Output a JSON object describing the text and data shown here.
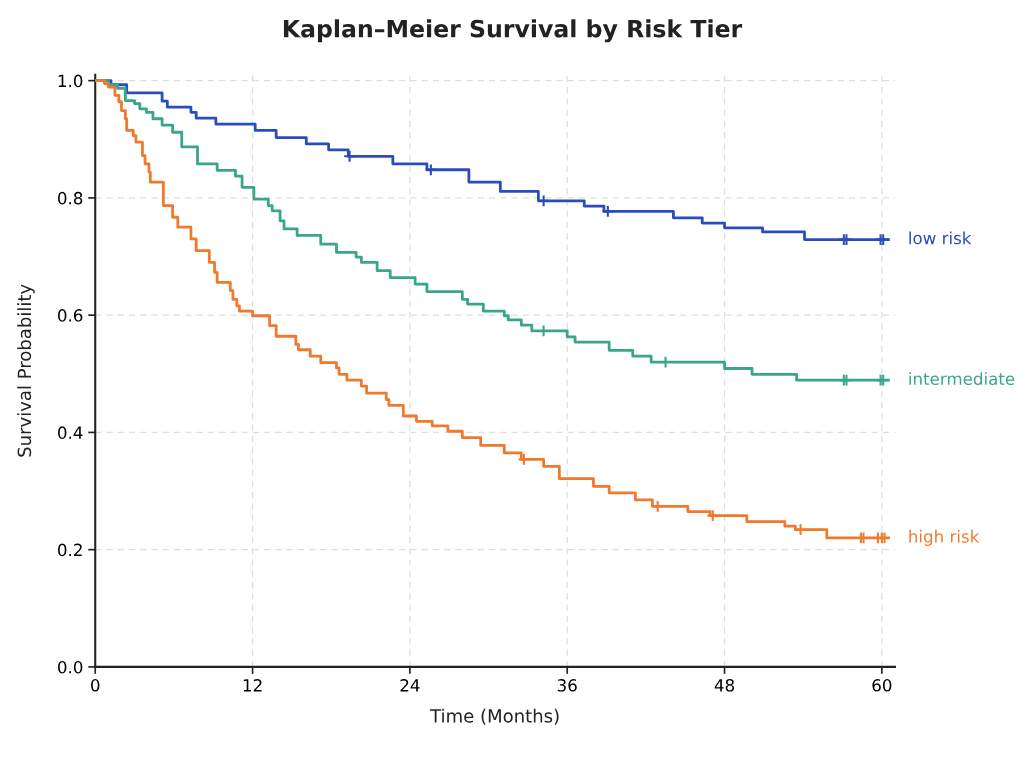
{
  "chart_data": {
    "type": "step",
    "title": "Kaplan–Meier Survival by Risk Tier",
    "xlabel": "Time (Months)",
    "ylabel": "Survival Probability",
    "xlim": [
      0,
      61
    ],
    "ylim": [
      0,
      1.01
    ],
    "xticks": [
      0,
      12,
      24,
      36,
      48,
      60
    ],
    "yticks": [
      {
        "value": 0,
        "label": "0.0"
      },
      0.2,
      0.4,
      0.6,
      0.8,
      {
        "value": 1,
        "label": "1.0"
      }
    ],
    "grid": true,
    "series": [
      {
        "name": "low risk",
        "color": "#2a4dbd",
        "x": [
          0,
          1.2,
          2.4,
          5.1,
          5.5,
          7.3,
          7.7,
          9.2,
          12.2,
          13.8,
          16.1,
          17.8,
          19.3,
          22.7,
          25.3,
          28.5,
          30.9,
          33.8,
          37.3,
          38.8,
          44.1,
          46.3,
          48.0,
          50.9,
          54.1,
          60.5
        ],
        "values": [
          1.0,
          0.993,
          0.979,
          0.965,
          0.955,
          0.946,
          0.936,
          0.926,
          0.915,
          0.903,
          0.892,
          0.882,
          0.871,
          0.858,
          0.848,
          0.827,
          0.811,
          0.795,
          0.786,
          0.777,
          0.766,
          0.757,
          0.749,
          0.742,
          0.729,
          0.729
        ]
      },
      {
        "name": "intermediate",
        "color": "#3aa58b",
        "x": [
          0,
          1.0,
          1.7,
          2.3,
          3.0,
          3.4,
          3.9,
          4.4,
          5.1,
          5.9,
          6.6,
          7.8,
          9.3,
          10.7,
          11.2,
          12.1,
          13.2,
          13.5,
          14.1,
          14.4,
          15.4,
          17.2,
          18.4,
          19.9,
          20.3,
          21.5,
          22.5,
          24.4,
          25.3,
          28.0,
          28.4,
          29.6,
          31.2,
          31.5,
          32.5,
          33.3,
          36.0,
          36.6,
          39.2,
          41.0,
          42.4,
          48.0,
          50.1,
          53.5,
          60.5
        ],
        "values": [
          1.0,
          0.993,
          0.987,
          0.966,
          0.961,
          0.952,
          0.946,
          0.935,
          0.924,
          0.912,
          0.887,
          0.858,
          0.847,
          0.837,
          0.818,
          0.798,
          0.787,
          0.778,
          0.761,
          0.747,
          0.736,
          0.721,
          0.707,
          0.699,
          0.69,
          0.676,
          0.664,
          0.653,
          0.64,
          0.627,
          0.619,
          0.607,
          0.599,
          0.592,
          0.583,
          0.573,
          0.563,
          0.554,
          0.54,
          0.53,
          0.52,
          0.509,
          0.499,
          0.489,
          0.489
        ]
      },
      {
        "name": "high risk",
        "color": "#ef7a2e",
        "x": [
          0,
          0.7,
          1.0,
          1.5,
          1.8,
          2.0,
          2.3,
          2.4,
          2.9,
          3.1,
          3.6,
          3.8,
          4.1,
          4.2,
          5.2,
          5.9,
          6.3,
          7.3,
          7.7,
          8.7,
          9.1,
          9.3,
          10.3,
          10.5,
          10.8,
          11.0,
          12.0,
          13.3,
          13.8,
          15.3,
          15.5,
          16.4,
          17.2,
          18.4,
          18.6,
          19.2,
          20.3,
          20.7,
          22.2,
          22.4,
          23.5,
          24.5,
          25.7,
          26.9,
          28.0,
          29.4,
          31.2,
          32.5,
          34.2,
          35.4,
          38.0,
          39.2,
          41.2,
          42.5,
          45.2,
          46.9,
          49.7,
          52.6,
          53.4,
          55.8,
          60.5
        ],
        "values": [
          1.0,
          0.995,
          0.989,
          0.975,
          0.964,
          0.949,
          0.935,
          0.915,
          0.906,
          0.895,
          0.872,
          0.858,
          0.844,
          0.827,
          0.787,
          0.767,
          0.75,
          0.73,
          0.71,
          0.69,
          0.673,
          0.656,
          0.642,
          0.627,
          0.616,
          0.607,
          0.599,
          0.582,
          0.564,
          0.55,
          0.541,
          0.53,
          0.519,
          0.51,
          0.499,
          0.489,
          0.479,
          0.467,
          0.456,
          0.446,
          0.428,
          0.419,
          0.411,
          0.402,
          0.391,
          0.378,
          0.365,
          0.354,
          0.342,
          0.321,
          0.308,
          0.297,
          0.285,
          0.274,
          0.265,
          0.258,
          0.248,
          0.24,
          0.234,
          0.22,
          0.22
        ]
      },
      {
        "type": "scatter",
        "marker": "cross",
        "color": "#2a4dbd",
        "x": [
          19.4,
          25.6,
          34.2,
          39.1,
          57.1,
          57.3,
          59.9,
          60.1
        ],
        "values": [
          0.871,
          0.848,
          0.795,
          0.777,
          0.729,
          0.729,
          0.729,
          0.729
        ]
      },
      {
        "type": "scatter",
        "marker": "cross",
        "color": "#3aa58b",
        "x": [
          34.2,
          43.5,
          57.1,
          57.3,
          59.9,
          60.1
        ],
        "values": [
          0.573,
          0.52,
          0.489,
          0.489,
          0.489,
          0.489
        ]
      },
      {
        "type": "scatter",
        "marker": "cross",
        "color": "#ef7a2e",
        "x": [
          32.7,
          42.9,
          47.1,
          53.8,
          58.4,
          58.6,
          59.7,
          60.0,
          60.2
        ],
        "values": [
          0.354,
          0.274,
          0.258,
          0.234,
          0.22,
          0.22,
          0.22,
          0.22,
          0.22
        ]
      }
    ]
  }
}
